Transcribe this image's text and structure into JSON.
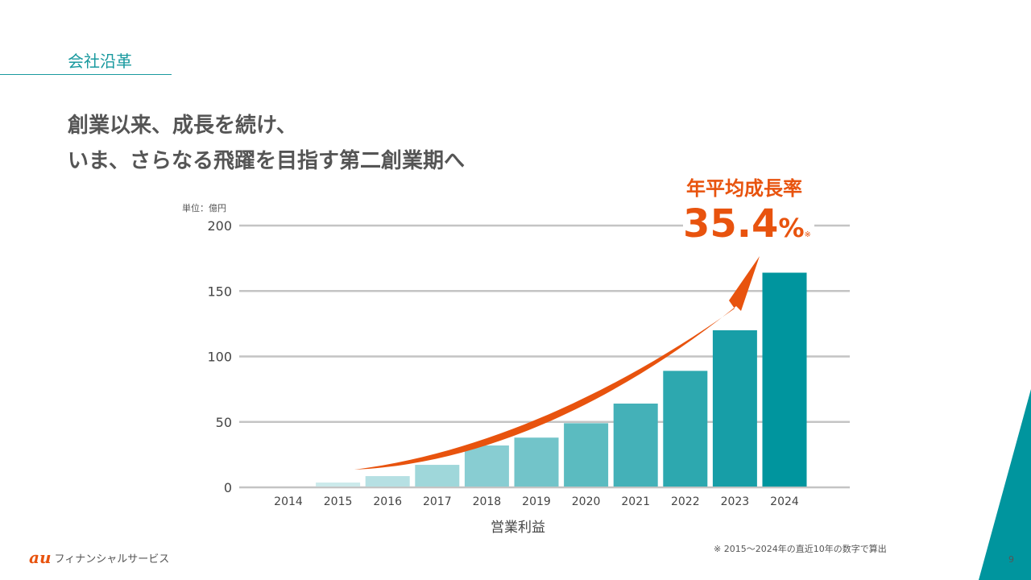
{
  "section_title": "会社沿革",
  "headline": [
    "創業以来、成長を続け、",
    "いま、さらなる飛躍を目指す第二創業期へ"
  ],
  "logo": {
    "mark": "au",
    "text": "フィナンシャルサービス"
  },
  "page_number": "9",
  "footnote": "※ 2015〜2024年の直近10年の数字で算出",
  "cagr": {
    "label": "年平均成長率",
    "value": "35.4",
    "unit": "%",
    "note": "※"
  },
  "colors": {
    "accent": "#1a9a9f",
    "arrow": "#e8530e",
    "bar_dark": "#00959e",
    "bar_light": "#e3f3f4"
  },
  "chart_data": {
    "type": "bar",
    "unit_label": "単位：億円",
    "xlabel": "営業利益",
    "categories": [
      "2014",
      "2015",
      "2016",
      "2017",
      "2018",
      "2019",
      "2020",
      "2021",
      "2022",
      "2023",
      "2024"
    ],
    "values": [
      0,
      3.7,
      8.6,
      17.2,
      32,
      38,
      49,
      64,
      89,
      120,
      164
    ],
    "ylim": [
      0,
      200
    ],
    "yticks": [
      0,
      50,
      100,
      150,
      200
    ],
    "grid": true
  }
}
